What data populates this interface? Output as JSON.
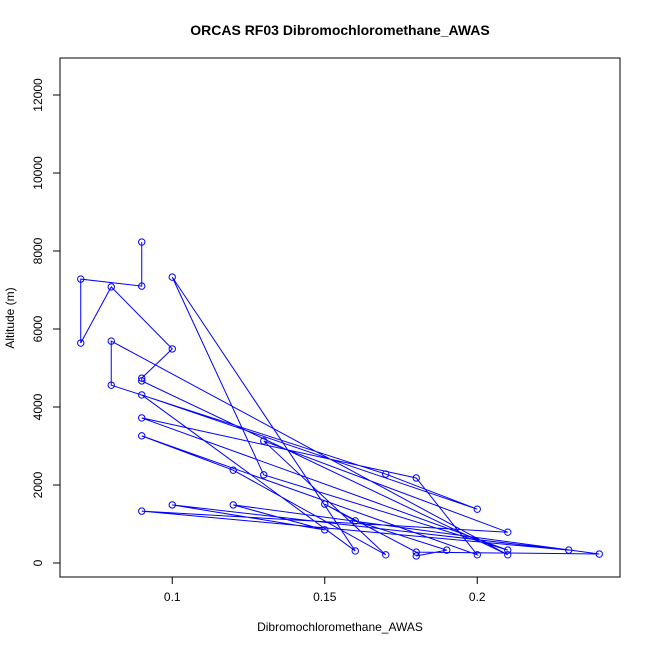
{
  "chart_data": {
    "type": "line",
    "title": "ORCAS RF03 Dibromochloromethane_AWAS",
    "x_label": "Dibromochloromethane_AWAS",
    "y_label": "Altitude (m)",
    "color": "#0000ff",
    "markers": true,
    "xlim": [
      0.0632,
      0.2468
    ],
    "xticks": [
      0.1,
      0.15,
      0.2
    ],
    "ylim": [
      -359,
      12949
    ],
    "yticks": [
      0,
      2000,
      4000,
      6000,
      8000,
      10000,
      12000
    ],
    "x": [
      0.09,
      0.09,
      0.07,
      0.07,
      0.08,
      0.1,
      0.09,
      0.09,
      0.21,
      0.08,
      0.08,
      0.17,
      0.2,
      0.09,
      0.16,
      0.1,
      0.13,
      0.21,
      0.09,
      0.18,
      0.2,
      0.09,
      0.12,
      0.17,
      0.13,
      0.21,
      0.09,
      0.23,
      0.1,
      0.15,
      0.12,
      0.24,
      0.18,
      0.15,
      0.16,
      0.19,
      0.18
    ],
    "values": [
      8230,
      7100,
      7280,
      5640,
      7080,
      5490,
      4740,
      4670,
      210,
      5690,
      4560,
      2280,
      1380,
      4310,
      310,
      7330,
      2260,
      330,
      3720,
      2180,
      210,
      3260,
      2380,
      210,
      3130,
      790,
      1330,
      330,
      1490,
      850,
      1490,
      230,
      280,
      1510,
      1080,
      330,
      180
    ]
  }
}
